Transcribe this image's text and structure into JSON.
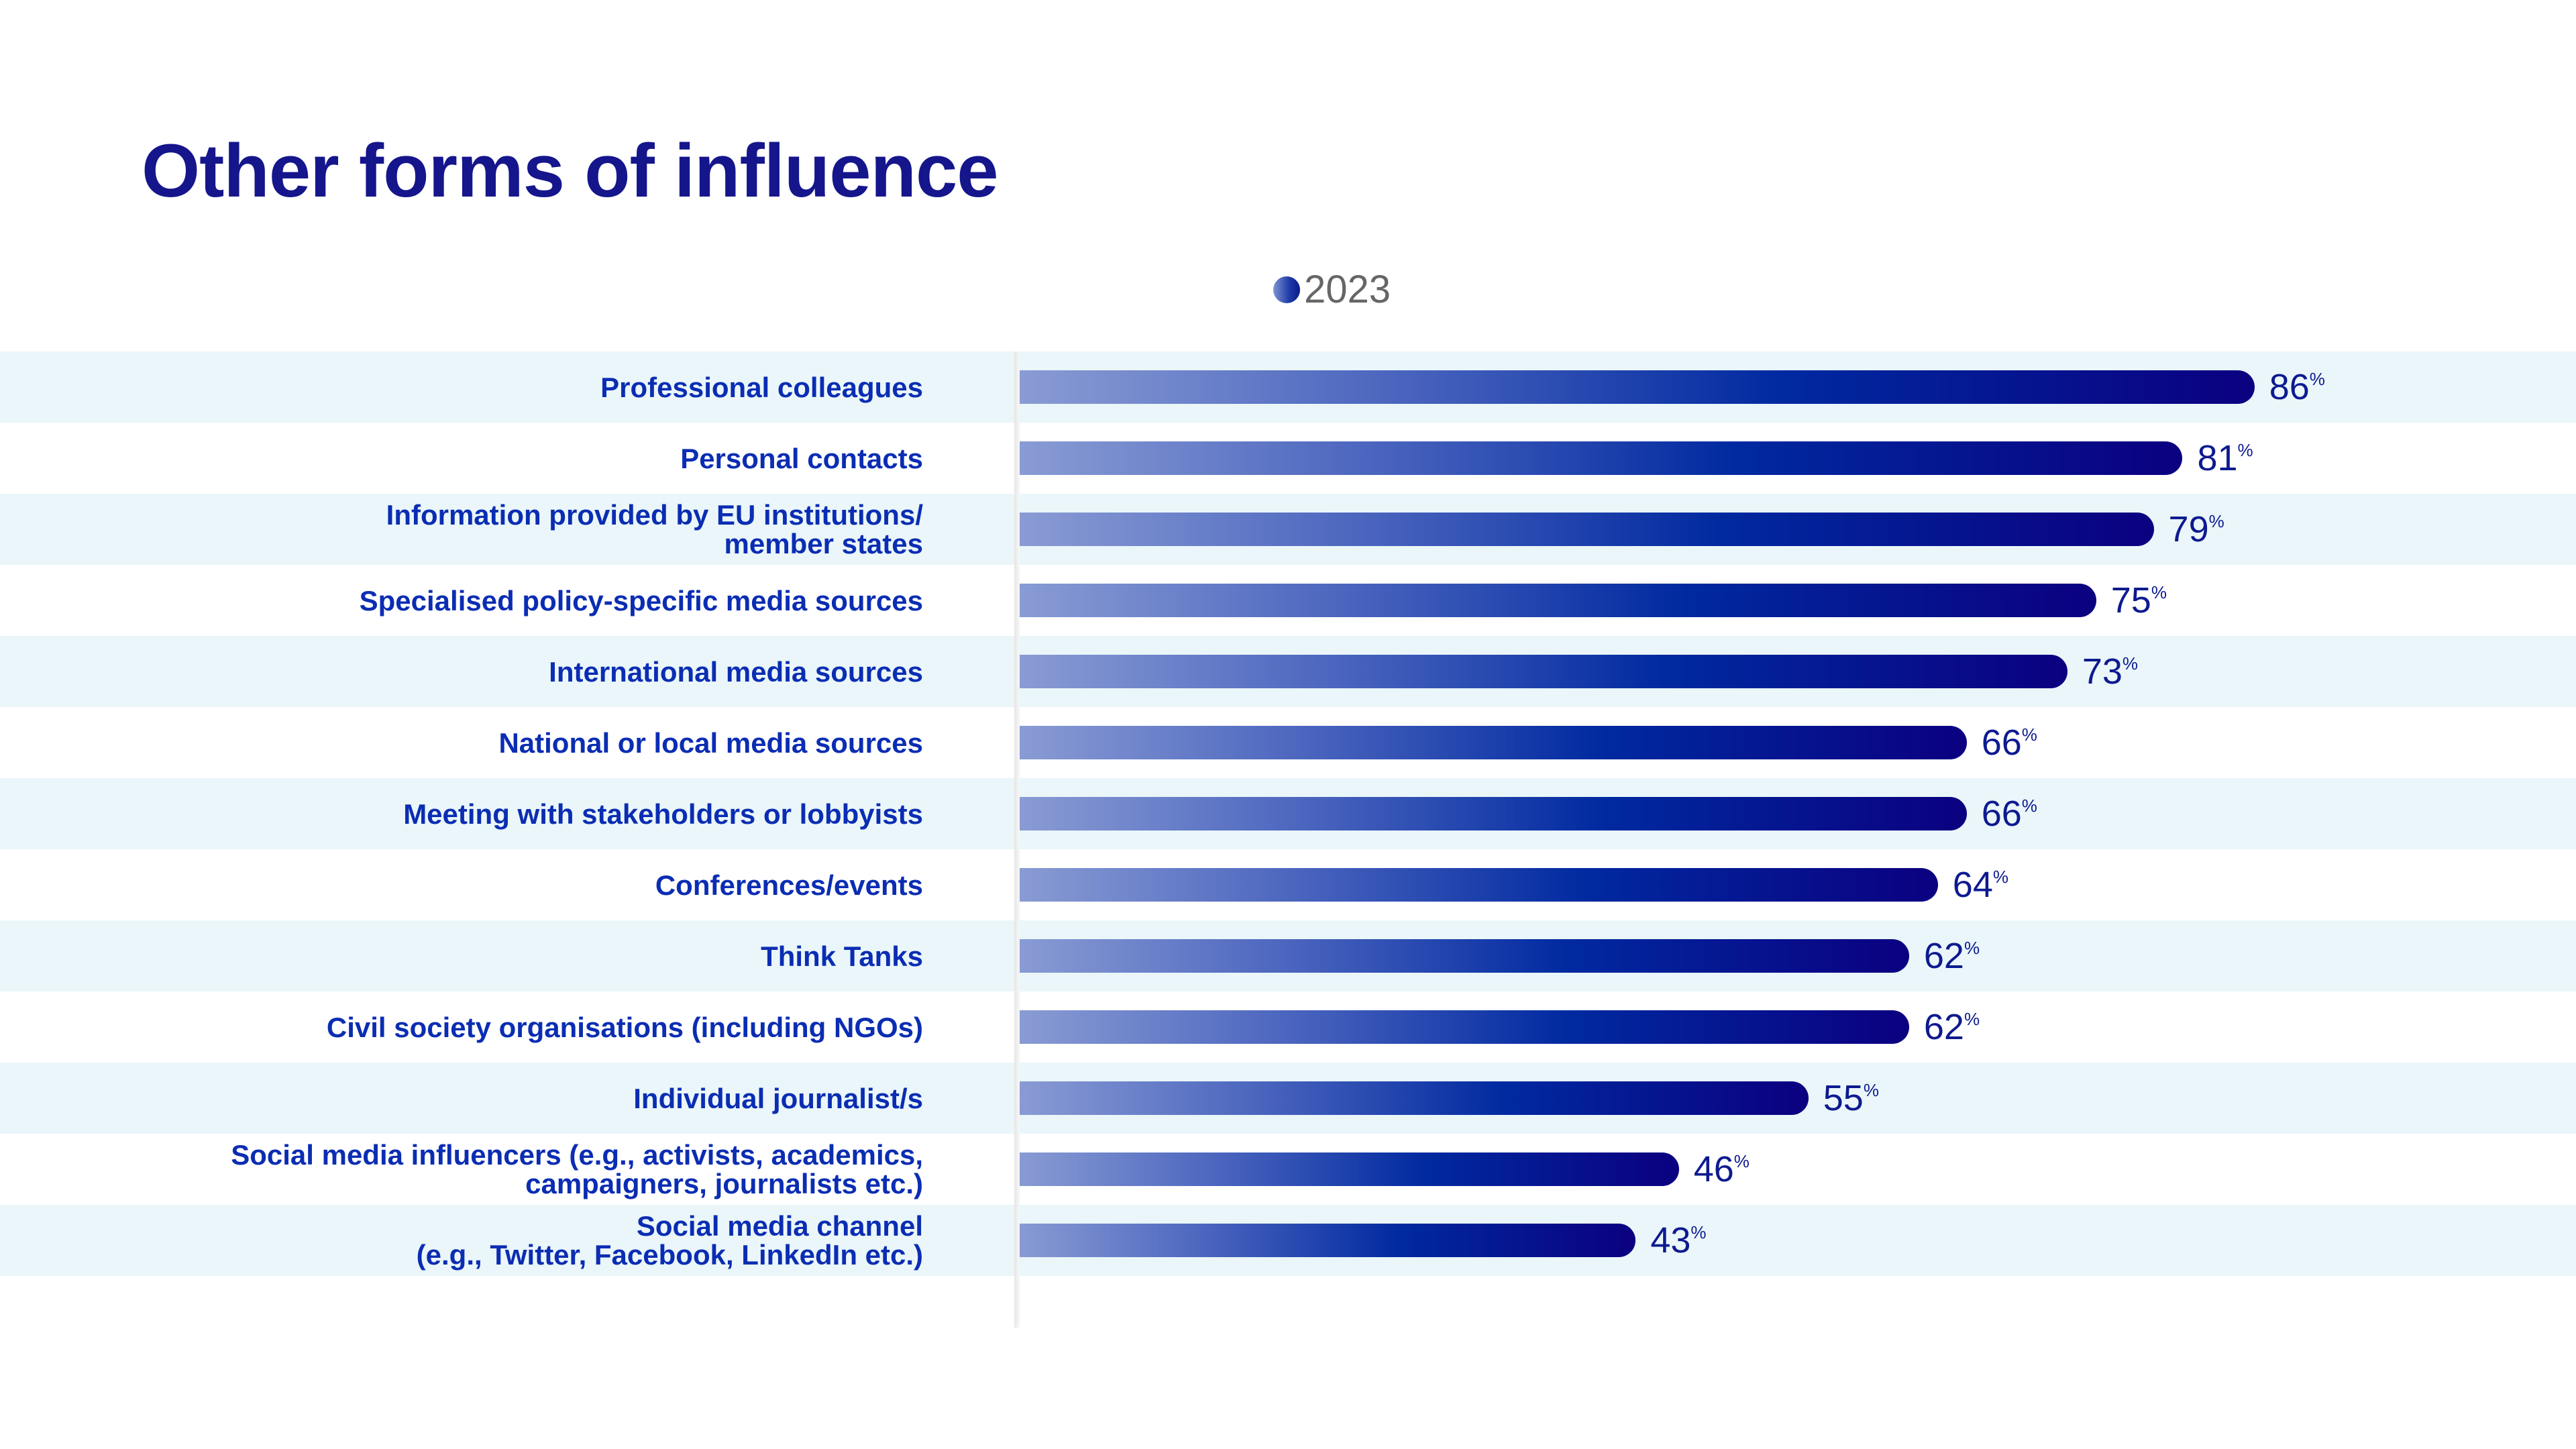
{
  "chart_data": {
    "type": "bar",
    "orientation": "horizontal",
    "title": "Other forms of influence",
    "legend": [
      "2023"
    ],
    "legend_placement": "top-center",
    "unit": "%",
    "categories": [
      "Professional colleagues",
      "Personal contacts",
      "Information provided by EU institutions/\nmember states",
      "Specialised policy-specific media sources",
      "International media sources",
      "National or local media sources",
      "Meeting with stakeholders or lobbyists",
      "Conferences/events",
      "Think Tanks",
      "Civil society organisations (including NGOs)",
      "Individual journalist/s",
      "Social media influencers (e.g., activists, academics,\ncampaigners, journalists etc.)",
      "Social media channel\n(e.g., Twitter, Facebook, LinkedIn etc.)"
    ],
    "series": [
      {
        "name": "2023",
        "values": [
          86,
          81,
          79,
          75,
          73,
          66,
          66,
          64,
          62,
          62,
          55,
          46,
          43
        ]
      }
    ],
    "xlim": [
      0,
      100
    ],
    "grid": false,
    "colors": {
      "bar_start": "#8a9cd4",
      "bar_end": "#0b0080",
      "label": "#0b2db3",
      "title": "#15168c",
      "row_alt": "#eaf6f9"
    }
  }
}
